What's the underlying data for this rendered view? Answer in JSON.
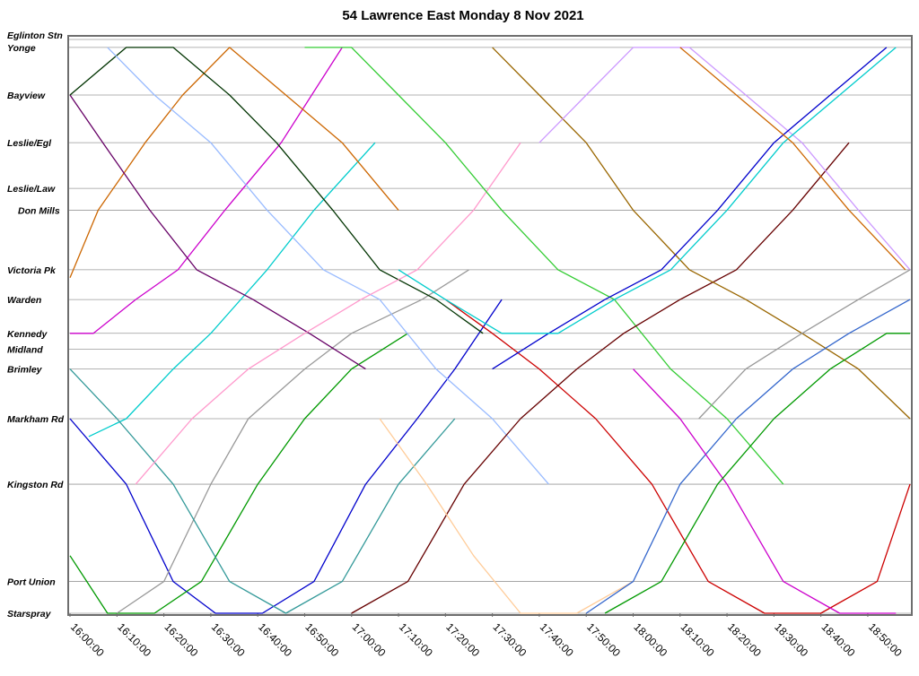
{
  "chart_data": {
    "type": "line",
    "title": "54 Lawrence East Monday 8 Nov 2021",
    "xlabel": "",
    "ylabel": "",
    "x_axis": {
      "start": "16:00:00",
      "end": "18:59:00",
      "ticks": [
        "16:00:00",
        "16:10:00",
        "16:20:00",
        "16:30:00",
        "16:40:00",
        "16:50:00",
        "17:00:00",
        "17:10:00",
        "17:20:00",
        "17:30:00",
        "17:40:00",
        "17:50:00",
        "18:00:00",
        "18:10:00",
        "18:20:00",
        "18:30:00",
        "18:40:00",
        "18:50:00"
      ]
    },
    "stops": [
      {
        "name": "Eglinton Stn",
        "km": 0.0
      },
      {
        "name": "Yonge",
        "km": 0.4
      },
      {
        "name": "Bayview",
        "km": 2.8
      },
      {
        "name": "Leslie/Egl",
        "km": 5.2
      },
      {
        "name": "Leslie/Law",
        "km": 7.5
      },
      {
        "name": "Don Mills",
        "km": 8.6
      },
      {
        "name": "Victoria Pk",
        "km": 11.6
      },
      {
        "name": "Warden",
        "km": 13.1
      },
      {
        "name": "Kennedy",
        "km": 14.8
      },
      {
        "name": "Midland",
        "km": 15.6
      },
      {
        "name": "Brimley",
        "km": 16.6
      },
      {
        "name": "Markham Rd",
        "km": 19.1
      },
      {
        "name": "Kingston Rd",
        "km": 22.4
      },
      {
        "name": "Port Union",
        "km": 27.3
      },
      {
        "name": "Starspray",
        "km": 28.9
      }
    ],
    "y_axis": {
      "range_km": [
        0,
        28.9
      ],
      "direction": "Eglinton Stn at top, Starspray at bottom"
    },
    "grid": true,
    "legend": "none",
    "series_colors": [
      "#0000cc",
      "#cc00cc",
      "#00cccc",
      "#009900",
      "#cc6600",
      "#999999",
      "#660066",
      "#003300",
      "#99bbff",
      "#339999",
      "#ff99cc",
      "#cc0000",
      "#33cc33",
      "#660000",
      "#996600",
      "#ffcc99",
      "#3366cc",
      "#cc99ff"
    ],
    "series": [
      {
        "x": [
          "16:00",
          "16:12",
          "16:22",
          "16:31",
          "16:41",
          "16:52",
          "17:03",
          "17:14",
          "17:22",
          "17:32"
        ],
        "y_km": [
          19.1,
          22.4,
          27.3,
          28.9,
          28.9,
          27.3,
          22.4,
          19.1,
          16.6,
          13.1
        ]
      },
      {
        "x": [
          "16:00",
          "16:05",
          "16:14",
          "16:23",
          "16:33",
          "16:45",
          "16:58"
        ],
        "y_km": [
          14.8,
          14.8,
          13.1,
          11.6,
          8.6,
          5.2,
          0.4
        ]
      },
      {
        "x": [
          "16:04",
          "16:12",
          "16:22",
          "16:30",
          "16:42",
          "16:52",
          "17:05"
        ],
        "y_km": [
          20.0,
          19.1,
          16.6,
          14.8,
          11.6,
          8.6,
          5.2
        ]
      },
      {
        "x": [
          "16:00",
          "16:08",
          "16:18",
          "16:28",
          "16:40",
          "16:50",
          "17:00",
          "17:12"
        ],
        "y_km": [
          26.0,
          28.9,
          28.9,
          27.3,
          22.4,
          19.1,
          16.6,
          14.8
        ]
      },
      {
        "x": [
          "16:00",
          "16:06",
          "16:16",
          "16:24",
          "16:34",
          "16:46",
          "16:58",
          "17:10"
        ],
        "y_km": [
          12.0,
          8.6,
          5.2,
          2.8,
          0.4,
          2.8,
          5.2,
          8.6
        ]
      },
      {
        "x": [
          "16:10",
          "16:20",
          "16:30",
          "16:38",
          "16:50",
          "17:00",
          "17:15",
          "17:25"
        ],
        "y_km": [
          28.9,
          27.3,
          22.4,
          19.1,
          16.6,
          14.8,
          13.1,
          11.6
        ]
      },
      {
        "x": [
          "16:00",
          "16:07",
          "16:17",
          "16:27",
          "16:39",
          "16:51",
          "17:03"
        ],
        "y_km": [
          2.8,
          5.2,
          8.6,
          11.6,
          13.1,
          14.8,
          16.6
        ]
      },
      {
        "x": [
          "16:00",
          "16:12",
          "16:22",
          "16:34",
          "16:44",
          "16:56",
          "17:06",
          "17:18",
          "17:28"
        ],
        "y_km": [
          2.8,
          0.4,
          0.4,
          2.8,
          5.2,
          8.6,
          11.6,
          13.1,
          14.8
        ]
      },
      {
        "x": [
          "16:08",
          "16:18",
          "16:30",
          "16:42",
          "16:54",
          "17:06",
          "17:18",
          "17:30",
          "17:42"
        ],
        "y_km": [
          0.4,
          2.8,
          5.2,
          8.6,
          11.6,
          13.1,
          16.6,
          19.1,
          22.4
        ]
      },
      {
        "x": [
          "16:00",
          "16:10",
          "16:22",
          "16:34",
          "16:46",
          "16:58",
          "17:10",
          "17:22"
        ],
        "y_km": [
          16.6,
          19.1,
          22.4,
          27.3,
          28.9,
          27.3,
          22.4,
          19.1
        ]
      },
      {
        "x": [
          "16:14",
          "16:26",
          "16:38",
          "16:50",
          "17:02",
          "17:14",
          "17:26",
          "17:36"
        ],
        "y_km": [
          22.4,
          19.1,
          16.6,
          14.8,
          13.1,
          11.6,
          8.6,
          5.2
        ]
      },
      {
        "x": [
          "17:20",
          "17:30",
          "17:40",
          "17:52",
          "18:04",
          "18:16",
          "18:28",
          "18:40",
          "18:52",
          "18:59"
        ],
        "y_km": [
          13.1,
          14.8,
          16.6,
          19.1,
          22.4,
          27.3,
          28.9,
          28.9,
          27.3,
          22.4
        ]
      },
      {
        "x": [
          "16:50",
          "17:00",
          "17:10",
          "17:20",
          "17:32",
          "17:44",
          "17:56",
          "18:08",
          "18:20",
          "18:32"
        ],
        "y_km": [
          0.4,
          0.4,
          2.8,
          5.2,
          8.6,
          11.6,
          13.1,
          16.6,
          19.1,
          22.4
        ]
      },
      {
        "x": [
          "17:00",
          "17:12",
          "17:24",
          "17:36",
          "17:48",
          "17:58",
          "18:10",
          "18:22",
          "18:34",
          "18:46"
        ],
        "y_km": [
          28.9,
          27.3,
          22.4,
          19.1,
          16.6,
          14.8,
          13.1,
          11.6,
          8.6,
          5.2
        ]
      },
      {
        "x": [
          "17:30",
          "17:40",
          "17:50",
          "18:00",
          "18:12",
          "18:24",
          "18:36",
          "18:48",
          "18:59"
        ],
        "y_km": [
          0.4,
          2.8,
          5.2,
          8.6,
          11.6,
          13.1,
          14.8,
          16.6,
          19.1
        ]
      },
      {
        "x": [
          "17:06",
          "17:16",
          "17:26",
          "17:36",
          "17:48",
          "18:00"
        ],
        "y_km": [
          19.1,
          22.4,
          26.0,
          28.9,
          28.9,
          27.3
        ]
      },
      {
        "x": [
          "17:50",
          "18:00",
          "18:10",
          "18:22",
          "18:34",
          "18:46",
          "18:59"
        ],
        "y_km": [
          28.9,
          27.3,
          22.4,
          19.1,
          16.6,
          14.8,
          13.1
        ]
      },
      {
        "x": [
          "17:40",
          "17:50",
          "18:00",
          "18:12",
          "18:24",
          "18:36",
          "18:48",
          "18:59"
        ],
        "y_km": [
          5.2,
          2.8,
          0.4,
          0.4,
          2.8,
          5.2,
          8.6,
          11.6
        ]
      },
      {
        "x": [
          "17:30",
          "17:42",
          "17:54",
          "18:06",
          "18:18",
          "18:30",
          "18:42",
          "18:54"
        ],
        "y_km": [
          16.6,
          14.8,
          13.1,
          11.6,
          8.6,
          5.2,
          2.8,
          0.4
        ]
      },
      {
        "x": [
          "18:00",
          "18:10",
          "18:20",
          "18:32",
          "18:44",
          "18:56"
        ],
        "y_km": [
          16.6,
          19.1,
          22.4,
          27.3,
          28.9,
          28.9
        ]
      },
      {
        "x": [
          "17:10",
          "17:20",
          "17:32",
          "17:44",
          "17:56",
          "18:08",
          "18:20",
          "18:32",
          "18:44",
          "18:56"
        ],
        "y_km": [
          11.6,
          13.1,
          14.8,
          14.8,
          13.1,
          11.6,
          8.6,
          5.2,
          2.8,
          0.4
        ]
      },
      {
        "x": [
          "17:54",
          "18:06",
          "18:18",
          "18:30",
          "18:42",
          "18:54",
          "18:59"
        ],
        "y_km": [
          28.9,
          27.3,
          22.4,
          19.1,
          16.6,
          14.8,
          14.8
        ]
      },
      {
        "x": [
          "18:10",
          "18:22",
          "18:34",
          "18:46",
          "18:58"
        ],
        "y_km": [
          0.4,
          2.8,
          5.2,
          8.6,
          11.6
        ]
      },
      {
        "x": [
          "18:14",
          "18:24",
          "18:36",
          "18:48",
          "18:59"
        ],
        "y_km": [
          19.1,
          16.6,
          14.8,
          13.1,
          11.6
        ]
      }
    ]
  }
}
